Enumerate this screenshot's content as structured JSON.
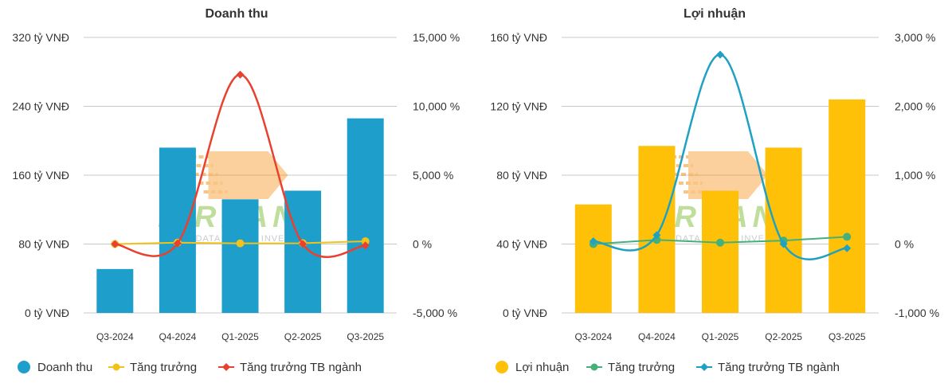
{
  "colors": {
    "revenue_bar": "#1E9FCB",
    "profit_bar": "#FFC107",
    "rev_growth": "#F2C21B",
    "rev_industry": "#E8412F",
    "profit_growth": "#45B07A",
    "profit_industry": "#1FA1C2",
    "grid": "#C8C8C8",
    "watermark_green": "#8BC34A",
    "watermark_orange": "#F7941D"
  },
  "watermark": {
    "brand": "FIREANT",
    "tagline": "DATA SMART INVEST"
  },
  "chart_data": [
    {
      "type": "bar",
      "title": "Doanh thu",
      "categories": [
        "Q3-2024",
        "Q4-2024",
        "Q1-2025",
        "Q2-2025",
        "Q3-2025"
      ],
      "series": [
        {
          "name": "Doanh thu",
          "kind": "bar",
          "axis": "left",
          "values": [
            51,
            192,
            132,
            142,
            226
          ]
        },
        {
          "name": "Tăng trưởng",
          "kind": "line",
          "axis": "right",
          "values": [
            0,
            100,
            50,
            60,
            200
          ]
        },
        {
          "name": "Tăng trưởng TB ngành",
          "kind": "spline",
          "axis": "right",
          "values": [
            0,
            50,
            12300,
            0,
            -100
          ]
        }
      ],
      "left_axis": {
        "min": 0,
        "max": 320,
        "ticks": [
          0,
          80,
          160,
          240,
          320
        ],
        "tick_labels": [
          "0 tỷ VNĐ",
          "80 tỷ VNĐ",
          "160 tỷ VNĐ",
          "240 tỷ VNĐ",
          "320 tỷ VNĐ"
        ]
      },
      "right_axis": {
        "min": -5000,
        "max": 15000,
        "ticks": [
          -5000,
          0,
          5000,
          10000,
          15000
        ],
        "tick_labels": [
          "-5,000 %",
          "0 %",
          "5,000 %",
          "10,000 %",
          "15,000 %"
        ]
      },
      "legend": [
        {
          "label": "Doanh thu",
          "symbol": "circle",
          "color": "#1E9FCB"
        },
        {
          "label": "Tăng trưởng",
          "symbol": "line-circle",
          "color": "#F2C21B"
        },
        {
          "label": "Tăng trưởng TB ngành",
          "symbol": "line-diamond",
          "color": "#E8412F"
        }
      ],
      "grid": true
    },
    {
      "type": "bar",
      "title": "Lợi nhuận",
      "categories": [
        "Q3-2024",
        "Q4-2024",
        "Q1-2025",
        "Q2-2025",
        "Q3-2025"
      ],
      "series": [
        {
          "name": "Lợi nhuận",
          "kind": "bar",
          "axis": "left",
          "values": [
            63,
            97,
            71,
            96,
            124
          ]
        },
        {
          "name": "Tăng trưởng",
          "kind": "line",
          "axis": "right",
          "values": [
            0,
            60,
            20,
            50,
            105
          ]
        },
        {
          "name": "Tăng trưởng TB ngành",
          "kind": "spline",
          "axis": "right",
          "values": [
            40,
            130,
            2750,
            0,
            -60
          ]
        }
      ],
      "left_axis": {
        "min": 0,
        "max": 160,
        "ticks": [
          0,
          40,
          80,
          120,
          160
        ],
        "tick_labels": [
          "0 tỷ VNĐ",
          "40 tỷ VNĐ",
          "80 tỷ VNĐ",
          "120 tỷ VNĐ",
          "160 tỷ VNĐ"
        ]
      },
      "right_axis": {
        "min": -1000,
        "max": 3000,
        "ticks": [
          -1000,
          0,
          1000,
          2000,
          3000
        ],
        "tick_labels": [
          "-1,000 %",
          "0 %",
          "1,000 %",
          "2,000 %",
          "3,000 %"
        ]
      },
      "legend": [
        {
          "label": "Lợi nhuận",
          "symbol": "circle",
          "color": "#FFC107"
        },
        {
          "label": "Tăng trưởng",
          "symbol": "line-circle",
          "color": "#45B07A"
        },
        {
          "label": "Tăng trưởng TB ngành",
          "symbol": "line-diamond",
          "color": "#1FA1C2"
        }
      ],
      "grid": true
    }
  ]
}
